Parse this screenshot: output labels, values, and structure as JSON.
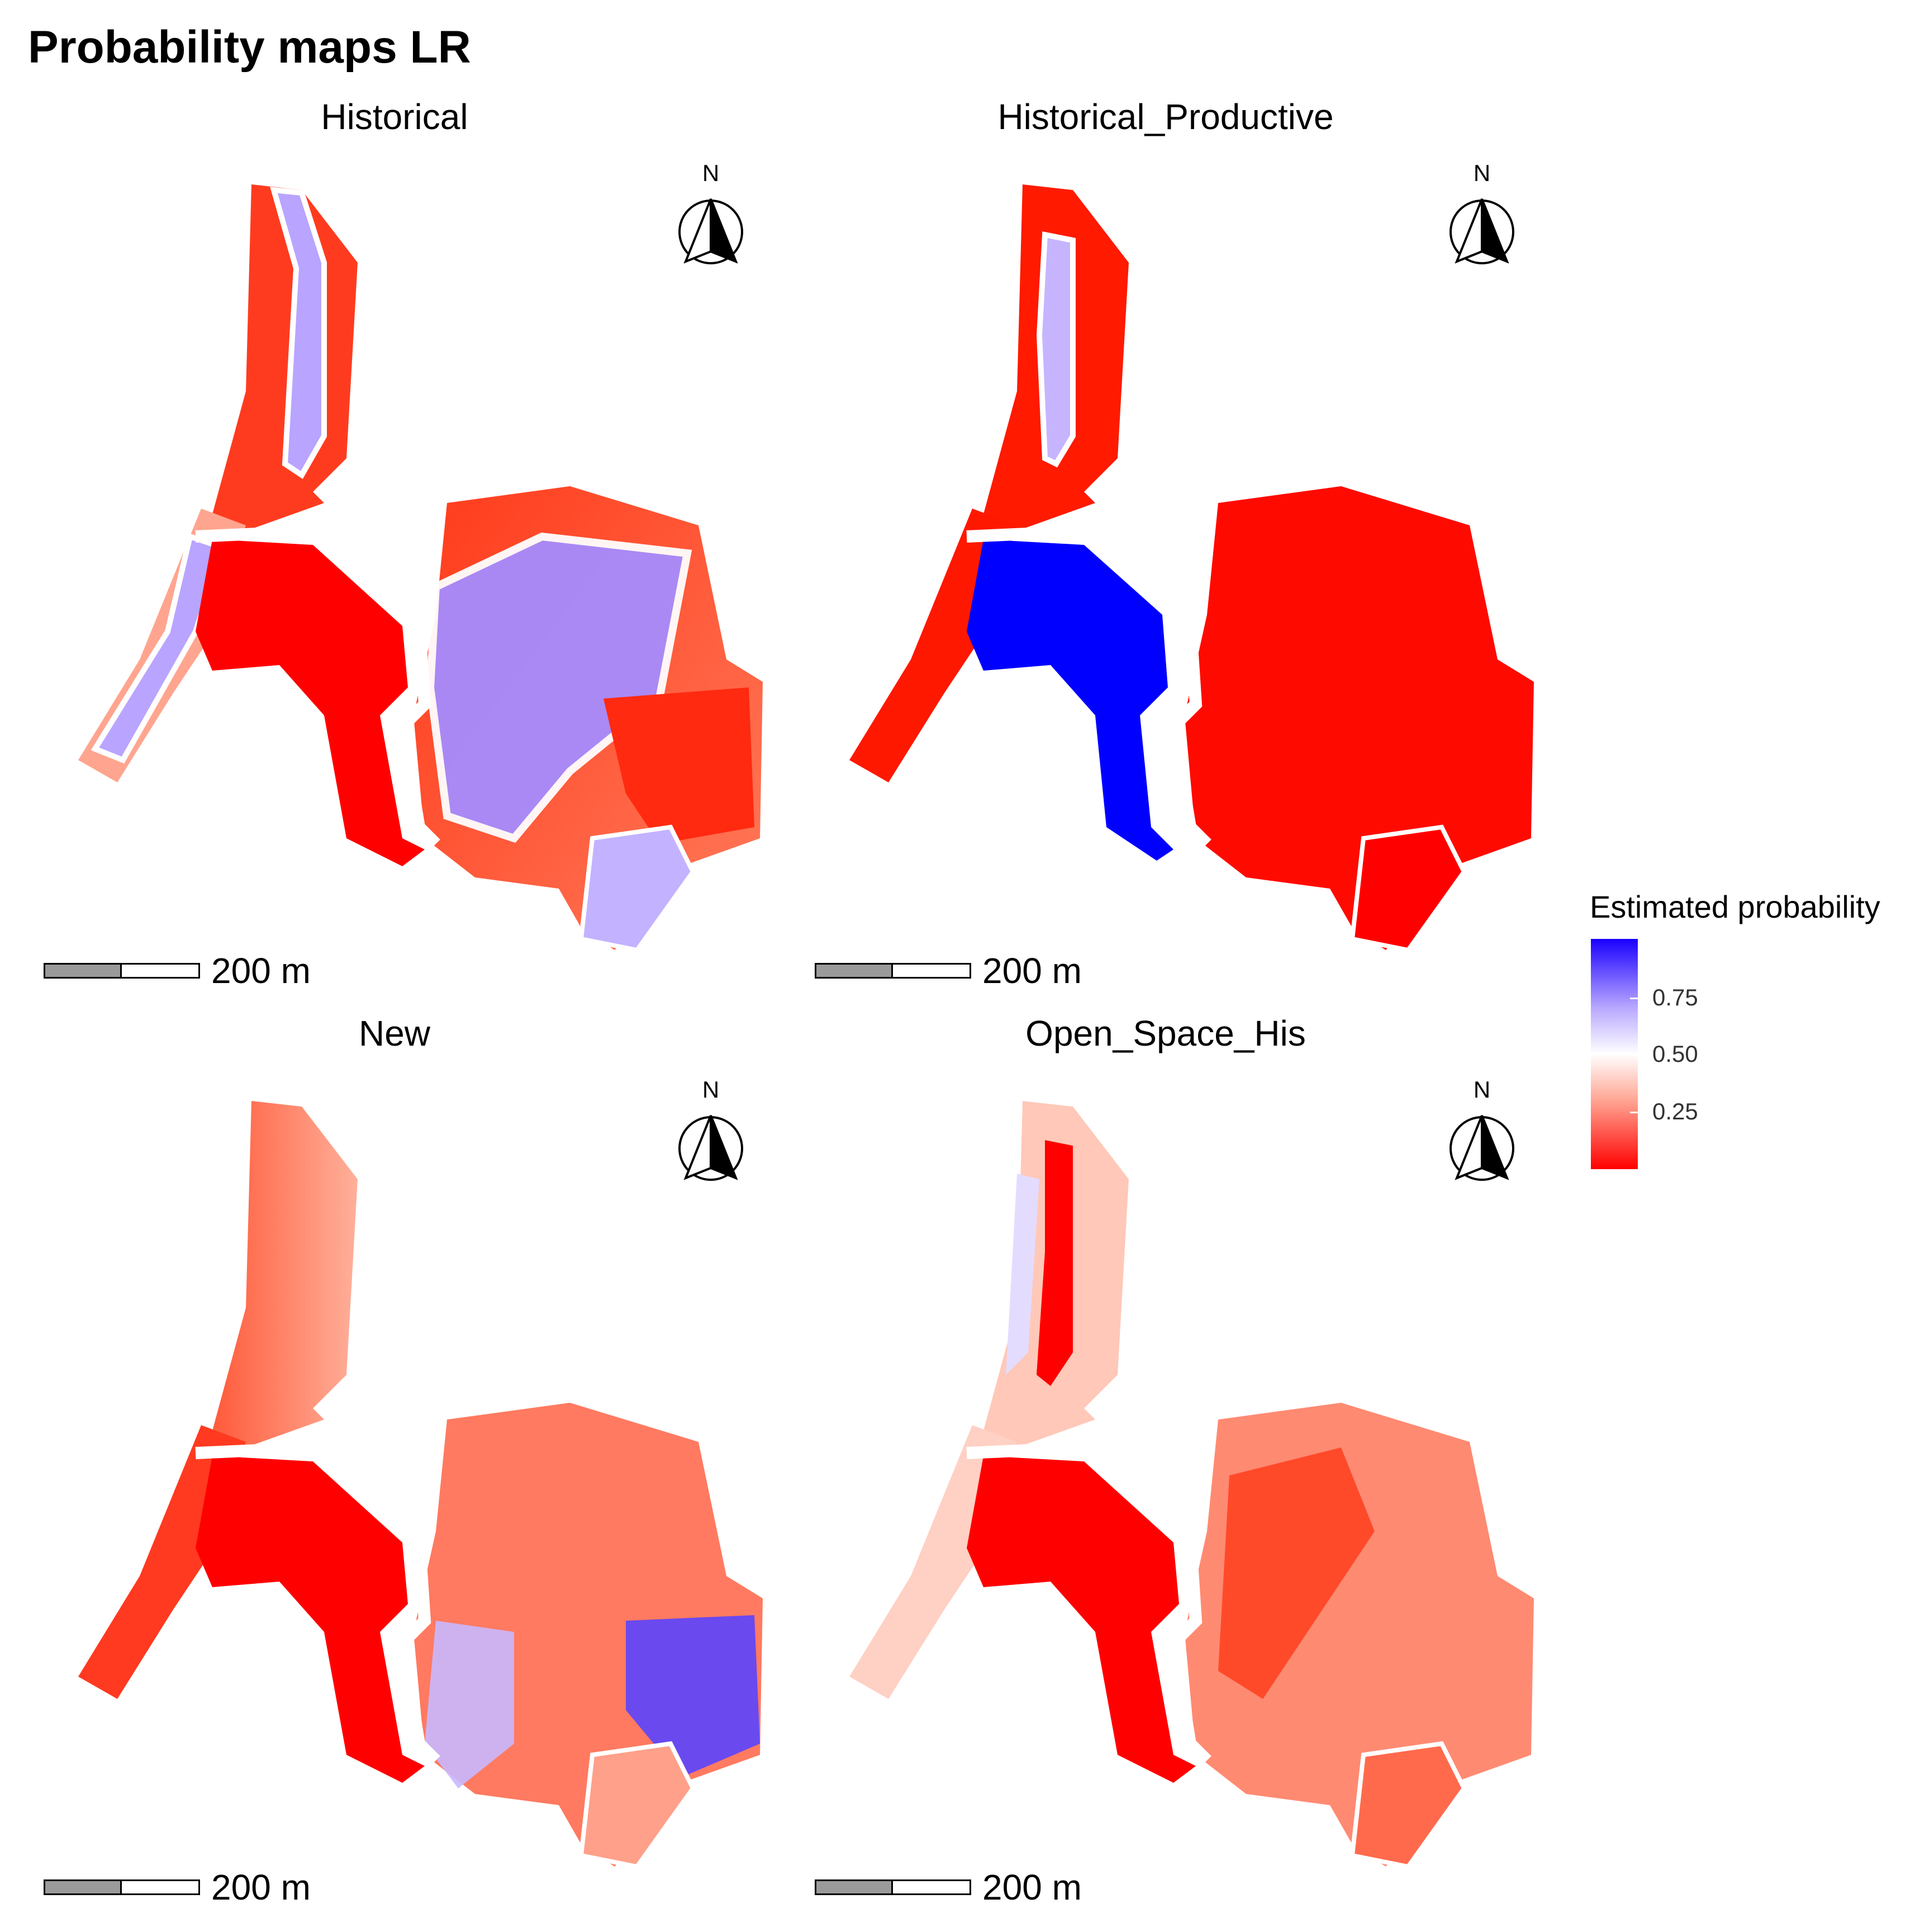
{
  "title": "Probability maps LR",
  "panels": [
    {
      "title": "Historical",
      "scalebar": "200 m",
      "north": "N"
    },
    {
      "title": "Historical_Productive",
      "scalebar": "200 m",
      "north": "N"
    },
    {
      "title": "New",
      "scalebar": "200 m",
      "north": "N"
    },
    {
      "title": "Open_Space_His",
      "scalebar": "200 m",
      "north": "N"
    }
  ],
  "legend": {
    "title": "Estimated probability",
    "labels": [
      "0.75",
      "0.50",
      "0.25"
    ],
    "colors": {
      "high": "#1a00ff",
      "mid": "#ffffff",
      "low": "#ff0000"
    }
  },
  "icons": {
    "north_arrow": "north-arrow-icon"
  }
}
